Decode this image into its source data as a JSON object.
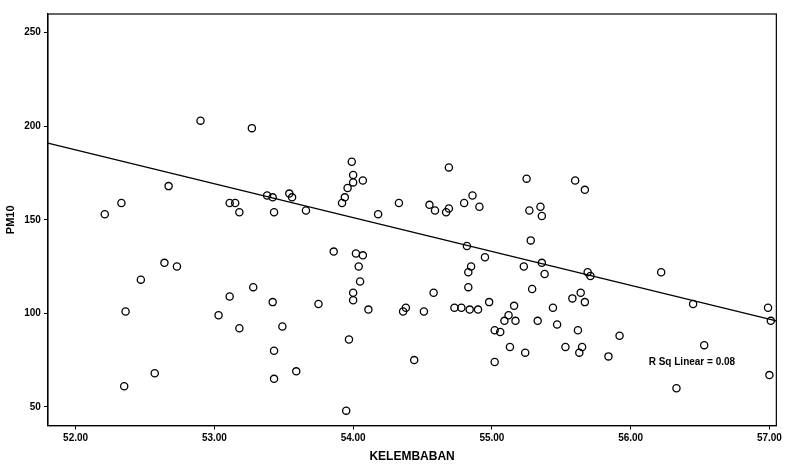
{
  "chart_data": {
    "type": "scatter",
    "x_label": "KELEMBABAN",
    "y_label": "PM10",
    "x": [
      52.21,
      52.33,
      52.35,
      52.47,
      52.36,
      52.57,
      52.67,
      52.64,
      52.73,
      52.9,
      53.03,
      53.11,
      53.11,
      53.15,
      53.18,
      53.18,
      53.27,
      53.28,
      53.38,
      53.42,
      53.43,
      53.42,
      53.43,
      53.43,
      53.49,
      53.54,
      53.56,
      53.59,
      53.66,
      53.75,
      53.86,
      53.92,
      53.94,
      53.96,
      53.95,
      53.97,
      53.99,
      54.0,
      54.0,
      54.0,
      54.0,
      54.02,
      54.04,
      54.07,
      54.05,
      54.07,
      54.11,
      54.18,
      54.33,
      54.36,
      54.38,
      54.44,
      54.51,
      54.55,
      54.58,
      54.59,
      54.67,
      54.69,
      54.69,
      54.73,
      54.78,
      54.8,
      54.82,
      54.83,
      54.83,
      54.84,
      54.85,
      54.86,
      54.9,
      54.91,
      54.95,
      54.98,
      55.02,
      55.02,
      55.06,
      55.09,
      55.12,
      55.13,
      55.16,
      55.17,
      55.23,
      55.24,
      55.25,
      55.27,
      55.28,
      55.29,
      55.33,
      55.35,
      55.36,
      55.36,
      55.38,
      55.44,
      55.47,
      55.53,
      55.58,
      55.6,
      55.62,
      55.63,
      55.64,
      55.65,
      55.67,
      55.67,
      55.69,
      55.71,
      55.84,
      55.92,
      56.22,
      56.33,
      56.45,
      56.53,
      56.99,
      57.01,
      57.0
    ],
    "values": [
      153,
      159,
      61,
      118,
      101,
      68,
      168,
      127,
      125,
      203,
      99,
      109,
      159,
      159,
      154,
      92,
      199,
      114,
      163,
      162,
      154,
      106,
      80,
      65,
      93,
      164,
      162,
      69,
      155,
      105,
      133,
      159,
      162,
      167,
      48,
      86,
      181,
      174,
      170,
      111,
      107,
      132,
      125,
      171,
      117,
      131,
      102,
      153,
      159,
      101,
      103,
      75,
      101,
      158,
      111,
      155,
      154,
      178,
      156,
      103,
      103,
      159,
      136,
      122,
      114,
      102,
      125,
      163,
      102,
      157,
      130,
      106,
      74,
      91,
      90,
      96,
      99,
      82,
      104,
      96,
      125,
      79,
      172,
      155,
      139,
      113,
      96,
      157,
      152,
      127,
      121,
      103,
      94,
      82,
      108,
      171,
      91,
      79,
      111,
      82,
      166,
      106,
      122,
      120,
      77,
      88,
      122,
      60,
      105,
      83,
      103,
      96,
      67
    ],
    "color": "#000000",
    "marker": "circle",
    "fit_line": {
      "type": "line",
      "x": [
        51.8,
        57.05
      ],
      "values": [
        191,
        96
      ],
      "color": "#000000",
      "line_style": "solid"
    },
    "annotations": [
      {
        "text": "R Sq Linear = 0.08",
        "x": 56.13,
        "y": 74
      }
    ],
    "xlim": [
      51.8,
      57.05
    ],
    "ylim": [
      40,
      260
    ],
    "xticks": [
      {
        "value": 52,
        "label": "52.00"
      },
      {
        "value": 53,
        "label": "53.00"
      },
      {
        "value": 54,
        "label": "54.00"
      },
      {
        "value": 55,
        "label": "55.00"
      },
      {
        "value": 56,
        "label": "56.00"
      },
      {
        "value": 57,
        "label": "57.00"
      }
    ],
    "yticks": [
      50,
      100,
      150,
      200,
      250
    ],
    "grid": false
  }
}
